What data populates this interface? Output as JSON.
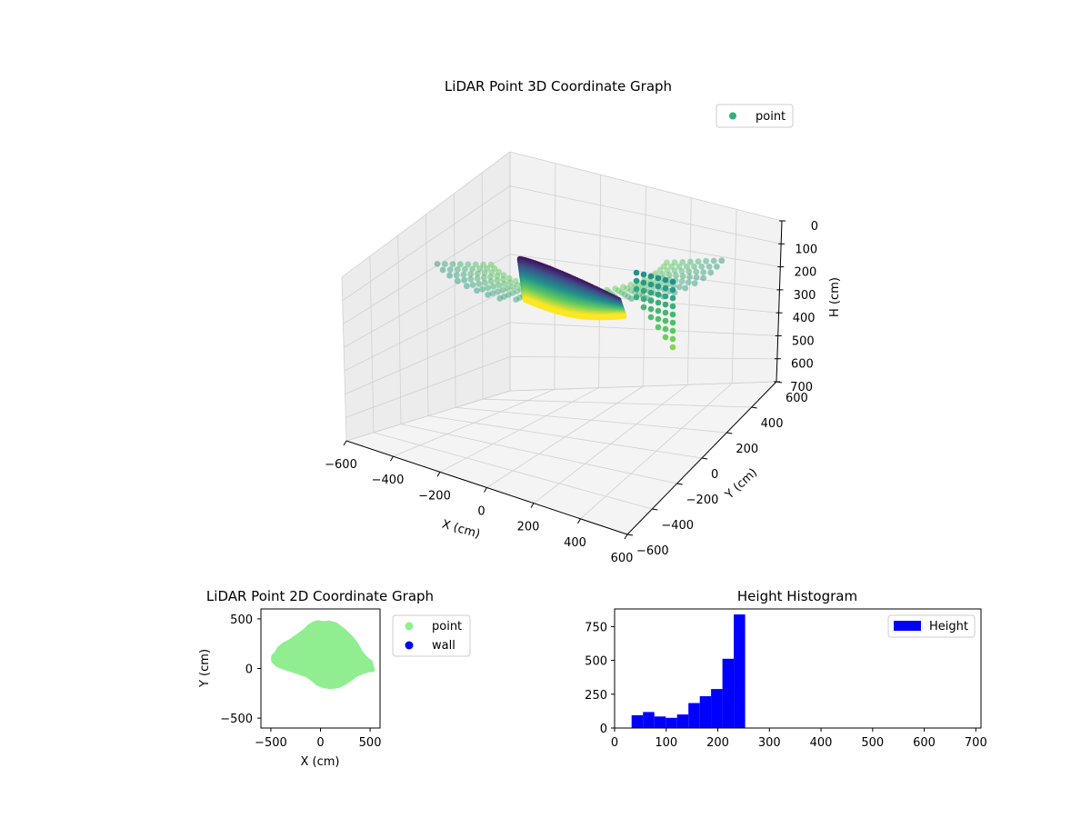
{
  "chart_data": [
    {
      "type": "scatter3d",
      "title": "LiDAR Point 3D Coordinate Graph",
      "xlabel": "X (cm)",
      "ylabel": "Y (cm)",
      "zlabel": "H (cm)",
      "xlim": [
        -600,
        600
      ],
      "ylim": [
        -600,
        600
      ],
      "zlim": [
        0,
        700
      ],
      "z_inverted": true,
      "x_ticks": [
        "−600",
        "−400",
        "−200",
        "0",
        "200",
        "400",
        "600"
      ],
      "y_ticks": [
        "−600",
        "−400",
        "−200",
        "0",
        "200",
        "400",
        "600"
      ],
      "z_ticks": [
        "0",
        "100",
        "200",
        "300",
        "400",
        "500",
        "600",
        "700"
      ],
      "colormap": "viridis",
      "legend": {
        "placement": "top-right",
        "label": "point",
        "color": "#2db27d"
      },
      "grid": true
    },
    {
      "type": "scatter",
      "title": "LiDAR Point 2D Coordinate Graph",
      "xlabel": "X (cm)",
      "ylabel": "Y (cm)",
      "xlim": [
        -600,
        600
      ],
      "ylim": [
        -600,
        600
      ],
      "x_ticks": [
        "−500",
        "0",
        "500"
      ],
      "y_ticks": [
        "−500",
        "0",
        "500"
      ],
      "point_color": "#90ee90",
      "wall_color": "#0000ff",
      "footprint_outline": {
        "x": [
          -440,
          -410,
          -360,
          -300,
          -230,
          -160,
          -110,
          -60,
          -20,
          20,
          80,
          150,
          230,
          300,
          350,
          400,
          450,
          500,
          510,
          520,
          480,
          420,
          350,
          300,
          240,
          180,
          100,
          40,
          -20,
          -80,
          -140,
          -200,
          -260,
          -320,
          -380,
          -430,
          -470,
          -470
        ],
        "y": [
          150,
          200,
          240,
          270,
          320,
          370,
          420,
          450,
          460,
          450,
          455,
          440,
          380,
          310,
          250,
          160,
          100,
          60,
          20,
          -10,
          -10,
          -30,
          -60,
          -100,
          -140,
          -170,
          -180,
          -170,
          -150,
          -100,
          -60,
          -40,
          -20,
          0,
          20,
          40,
          80,
          120
        ]
      },
      "legend": {
        "placement": "outside-right",
        "entries": [
          "point",
          "wall"
        ]
      }
    },
    {
      "type": "bar",
      "title": "Height Histogram",
      "xlim": [
        0,
        710
      ],
      "ylim": [
        0,
        880
      ],
      "x_ticks": [
        "0",
        "100",
        "200",
        "300",
        "400",
        "500",
        "600",
        "700"
      ],
      "y_ticks": [
        "0",
        "250",
        "500",
        "750"
      ],
      "bin_edges": [
        33,
        55,
        77,
        99,
        121,
        143,
        165,
        187,
        209,
        231,
        253
      ],
      "values": [
        95,
        118,
        85,
        75,
        100,
        185,
        235,
        288,
        512,
        840
      ],
      "color": "#0000ff",
      "legend": {
        "placement": "top-right",
        "label": "Height"
      }
    }
  ]
}
